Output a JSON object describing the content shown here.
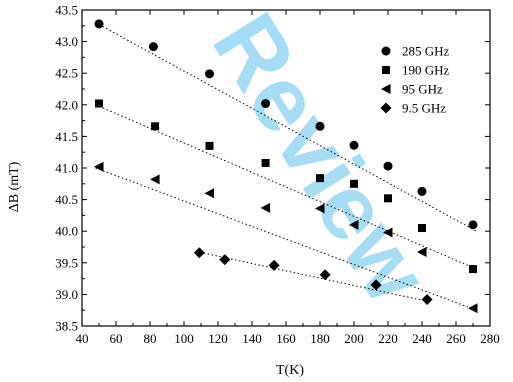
{
  "watermark": "Review",
  "chart_data": {
    "type": "scatter",
    "title": "",
    "xlabel": "T(K)",
    "ylabel": "ΔB (mT)",
    "xlim": [
      40,
      280
    ],
    "ylim": [
      38.5,
      43.5
    ],
    "xticks": [
      40,
      60,
      80,
      100,
      120,
      140,
      160,
      180,
      200,
      220,
      240,
      260,
      280
    ],
    "yticks": [
      38.5,
      39.0,
      39.5,
      40.0,
      40.5,
      41.0,
      41.5,
      42.0,
      42.5,
      43.0,
      43.5
    ],
    "xtick_labels": [
      "40",
      "60",
      "80",
      "100",
      "120",
      "140",
      "160",
      "180",
      "200",
      "220",
      "240",
      "260",
      "280"
    ],
    "ytick_labels": [
      "38.5",
      "39.0",
      "39.5",
      "40.0",
      "40.5",
      "41.0",
      "41.5",
      "42.0",
      "42.5",
      "43.0",
      "43.5"
    ],
    "grid": false,
    "legend_position": "top-right",
    "series": [
      {
        "name": "285 GHz",
        "marker": "circle",
        "x": [
          50,
          82,
          115,
          148,
          180,
          200,
          220,
          240,
          270
        ],
        "y": [
          43.28,
          42.92,
          42.49,
          42.02,
          41.66,
          41.36,
          41.03,
          40.63,
          40.1
        ],
        "fit": [
          [
            48,
            43.3
          ],
          [
            272,
            40.0
          ]
        ]
      },
      {
        "name": "190 GHz",
        "marker": "square",
        "x": [
          50,
          83,
          115,
          148,
          180,
          200,
          220,
          240,
          270
        ],
        "y": [
          42.02,
          41.66,
          41.35,
          41.08,
          40.84,
          40.75,
          40.52,
          40.05,
          39.4
        ],
        "fit": [
          [
            48,
            42.0
          ],
          [
            272,
            39.4
          ]
        ]
      },
      {
        "name": "95 GHz",
        "marker": "triangle-left",
        "x": [
          50,
          83,
          115,
          148,
          180,
          200,
          220,
          240,
          270
        ],
        "y": [
          41.02,
          40.82,
          40.6,
          40.37,
          40.36,
          40.1,
          39.98,
          39.67,
          38.78
        ],
        "fit": [
          [
            48,
            41.0
          ],
          [
            272,
            38.75
          ]
        ]
      },
      {
        "name": "9.5 GHz",
        "marker": "diamond",
        "x": [
          109,
          124,
          153,
          183,
          213,
          243
        ],
        "y": [
          39.66,
          39.55,
          39.46,
          39.31,
          39.15,
          38.92
        ],
        "fit": [
          [
            107,
            39.68
          ],
          [
            245,
            38.88
          ]
        ]
      }
    ]
  }
}
